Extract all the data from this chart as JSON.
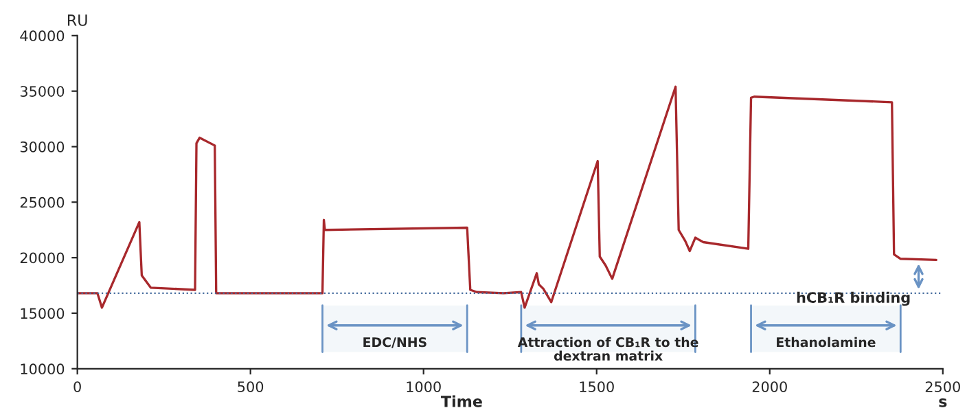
{
  "chart_data": {
    "type": "line",
    "xlabel": "Time",
    "ylabel": "RU",
    "x": [
      0,
      58,
      71,
      179,
      186,
      212,
      340,
      344,
      353,
      397,
      401,
      708,
      712,
      715,
      1126,
      1135,
      1154,
      1231,
      1282,
      1292,
      1327,
      1333,
      1346,
      1369,
      1503,
      1509,
      1526,
      1545,
      1728,
      1737,
      1756,
      1769,
      1785,
      1808,
      1938,
      1946,
      1955,
      2353,
      2359,
      2378,
      2481
    ],
    "series": [
      {
        "color": "#a8282c",
        "values": [
          16800,
          16800,
          15500,
          23200,
          18400,
          17300,
          17100,
          30300,
          30800,
          30100,
          16800,
          16800,
          23400,
          22500,
          22700,
          17100,
          16900,
          16800,
          16900,
          15500,
          18600,
          17600,
          17200,
          16000,
          28700,
          20100,
          19300,
          18100,
          35400,
          22500,
          21500,
          20600,
          21800,
          21400,
          20800,
          34400,
          34500,
          34000,
          20300,
          19900,
          19800
        ]
      }
    ],
    "xlim": [
      0,
      2500
    ],
    "xticks": [
      0,
      500,
      1000,
      1500,
      2000,
      2500
    ],
    "ylim": [
      10000,
      40000
    ],
    "yticks": [
      10000,
      15000,
      20000,
      25000,
      30000,
      35000,
      40000
    ],
    "grid": false,
    "ref_lines": [
      {
        "axis": "y",
        "value": 16800,
        "color": "#4a6fa0",
        "line_style": "dotted"
      }
    ],
    "bands": [
      {
        "axis": "x",
        "from": 708,
        "to": 1126,
        "label": "EDC/NHS",
        "color": "#6a93c4"
      },
      {
        "axis": "x",
        "from": 1282,
        "to": 1785,
        "label": "Attraction of CB₁R to the\ndextran matrix",
        "color": "#6a93c4"
      },
      {
        "axis": "x",
        "from": 1946,
        "to": 2378,
        "label": "Ethanolamine",
        "color": "#6a93c4"
      }
    ],
    "annotations": [
      "s",
      "hCB₁R binding"
    ]
  }
}
